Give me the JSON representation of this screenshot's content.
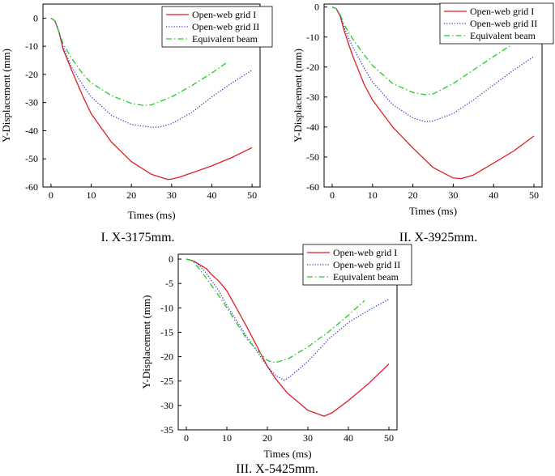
{
  "chart_data": [
    {
      "type": "line",
      "caption_number": "I.",
      "caption": "X-3175mm.",
      "xlabel": "Times (ms)",
      "ylabel": "Y-Displacement (mm)",
      "xlim": [
        -2,
        52
      ],
      "ylim": [
        -60,
        5
      ],
      "xticks": [
        0,
        10,
        20,
        30,
        40,
        50
      ],
      "yticks": [
        0,
        -10,
        -20,
        -30,
        -40,
        -50,
        -60
      ],
      "legend_position": "top-right",
      "series": [
        {
          "name": "Open-web grid I",
          "color": "#dd1f26",
          "dash": "solid",
          "x": [
            0,
            1,
            2,
            3,
            5,
            8,
            10,
            15,
            20,
            25,
            29,
            30,
            32,
            35,
            40,
            45,
            50
          ],
          "y": [
            0,
            -1,
            -5,
            -11,
            -18,
            -28,
            -34,
            -44,
            -51,
            -55.5,
            -57.3,
            -57.2,
            -56.5,
            -55,
            -52.5,
            -49.5,
            -46
          ]
        },
        {
          "name": "Open-web grid II",
          "color": "#3333cc",
          "dash": "dot",
          "x": [
            0,
            1,
            2,
            3,
            5,
            8,
            10,
            15,
            20,
            25,
            27,
            30,
            35,
            40,
            45,
            50
          ],
          "y": [
            0,
            -1,
            -5,
            -10,
            -17,
            -24,
            -28,
            -34.5,
            -37.8,
            -38.8,
            -38.7,
            -37.5,
            -33.5,
            -28,
            -23,
            -18.5
          ]
        },
        {
          "name": "Equivalent beam",
          "color": "#22cc22",
          "dash": "dashdot",
          "x": [
            0,
            1,
            2,
            3,
            5,
            8,
            10,
            15,
            20,
            23,
            25,
            30,
            35,
            40,
            43.5
          ],
          "y": [
            0,
            -1,
            -5,
            -9,
            -14,
            -20,
            -23,
            -27.5,
            -30.3,
            -31,
            -30.8,
            -28,
            -24,
            -19.5,
            -16
          ]
        }
      ]
    },
    {
      "type": "line",
      "caption_number": "II.",
      "caption": "X-3925mm.",
      "xlabel": "Times (ms)",
      "ylabel": "Y-Displacement (mm)",
      "xlim": [
        -2,
        52
      ],
      "ylim": [
        -60,
        1
      ],
      "xticks": [
        0,
        10,
        20,
        30,
        40,
        50
      ],
      "yticks": [
        0,
        -10,
        -20,
        -30,
        -40,
        -50,
        -60
      ],
      "legend_position": "top-right",
      "series": [
        {
          "name": "Open-web grid I",
          "color": "#dd1f26",
          "dash": "solid",
          "x": [
            0,
            1,
            2,
            3,
            5,
            8,
            10,
            15,
            20,
            25,
            30,
            32,
            35,
            40,
            45,
            50
          ],
          "y": [
            0,
            -0.5,
            -3,
            -8,
            -16,
            -26,
            -31,
            -40,
            -47,
            -53.5,
            -57,
            -57.2,
            -56,
            -52,
            -48,
            -43
          ]
        },
        {
          "name": "Open-web grid II",
          "color": "#3333cc",
          "dash": "dot",
          "x": [
            0,
            1,
            2,
            3,
            5,
            8,
            10,
            15,
            20,
            23,
            25,
            30,
            35,
            40,
            45,
            50
          ],
          "y": [
            0,
            -0.5,
            -3,
            -7,
            -13,
            -20.5,
            -25,
            -32.5,
            -37,
            -38.2,
            -38,
            -35.5,
            -31,
            -26,
            -21,
            -16.5
          ]
        },
        {
          "name": "Equivalent beam",
          "color": "#22cc22",
          "dash": "dashdot",
          "x": [
            0,
            1,
            2,
            3,
            5,
            8,
            10,
            15,
            20,
            23,
            25,
            30,
            35,
            40,
            44
          ],
          "y": [
            0,
            -0.5,
            -2.5,
            -6,
            -10.5,
            -16,
            -19.5,
            -25.5,
            -28.5,
            -29.2,
            -29,
            -25.5,
            -21,
            -16.5,
            -13
          ]
        }
      ]
    },
    {
      "type": "line",
      "caption_number": "III.",
      "caption": "X-5425mm.",
      "xlabel": "Times (ms)",
      "ylabel": "Y-Displacement (mm)",
      "xlim": [
        -2,
        52
      ],
      "ylim": [
        -35,
        1
      ],
      "xticks": [
        0,
        10,
        20,
        30,
        40,
        50
      ],
      "yticks": [
        0,
        -5,
        -10,
        -15,
        -20,
        -25,
        -30,
        -35
      ],
      "legend_position": "top-right",
      "series": [
        {
          "name": "Open-web grid I",
          "color": "#dd1f26",
          "dash": "solid",
          "x": [
            0,
            1,
            2,
            3,
            4,
            5,
            6,
            8,
            10,
            15,
            20,
            22,
            25,
            30,
            34,
            36,
            40,
            45,
            50
          ],
          "y": [
            0,
            -0.2,
            -0.5,
            -1,
            -1.5,
            -2,
            -3,
            -4.5,
            -6.5,
            -14,
            -22,
            -24.5,
            -27.5,
            -31,
            -32.2,
            -31.5,
            -29,
            -25.5,
            -21.5
          ]
        },
        {
          "name": "Open-web grid II",
          "color": "#3333cc",
          "dash": "dot",
          "x": [
            0,
            1,
            2,
            3,
            4,
            5,
            8,
            10,
            15,
            20,
            22,
            24,
            25,
            30,
            35,
            40,
            45,
            50
          ],
          "y": [
            0,
            -0.2,
            -0.5,
            -1.2,
            -2,
            -3,
            -6.5,
            -9.5,
            -16,
            -22,
            -23.8,
            -24.8,
            -24.5,
            -21,
            -16.5,
            -13,
            -10.5,
            -8.2
          ]
        },
        {
          "name": "Equivalent beam",
          "color": "#22cc22",
          "dash": "dashdot",
          "x": [
            0,
            1,
            2,
            3,
            5,
            8,
            10,
            15,
            20,
            22,
            25,
            30,
            35,
            40,
            44
          ],
          "y": [
            0,
            -0.2,
            -0.8,
            -1.8,
            -4,
            -7.5,
            -10,
            -16.5,
            -20.8,
            -21.2,
            -20.5,
            -18,
            -15,
            -11.5,
            -8.5
          ]
        }
      ]
    }
  ]
}
